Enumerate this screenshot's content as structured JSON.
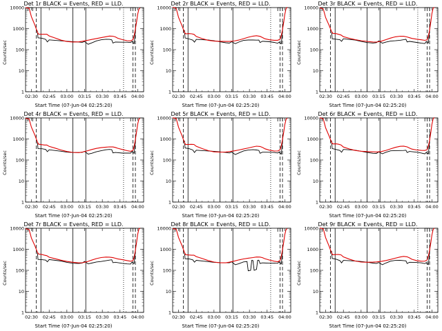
{
  "colors": {
    "events": "#000000",
    "lld": "#e00000",
    "background": "#ffffff"
  },
  "xlabel": "Start Time (07-Jun-04 02:25:20)",
  "ylabel": "Counts/sec",
  "x_ticks": [
    "02:30",
    "02:45",
    "03:00",
    "03:15",
    "03:30",
    "03:45",
    "04:00"
  ],
  "y_ticks": [
    "1",
    "10",
    "100",
    "1000",
    "10000"
  ],
  "chart_data": [
    {
      "type": "line",
      "title": "Det 1r BLACK = Events, RED = LLD.",
      "x_range_minutes": [
        0,
        100
      ],
      "ylim": [
        1,
        10000
      ],
      "yscale": "log"
    },
    {
      "type": "line",
      "title": "Det 2r BLACK = Events, RED = LLD.",
      "x_range_minutes": [
        0,
        100
      ],
      "ylim": [
        1,
        10000
      ],
      "yscale": "log"
    },
    {
      "type": "line",
      "title": "Det 3r BLACK = Events, RED = LLD.",
      "x_range_minutes": [
        0,
        100
      ],
      "ylim": [
        1,
        10000
      ],
      "yscale": "log"
    },
    {
      "type": "line",
      "title": "Det 4r BLACK = Events, RED = LLD.",
      "x_range_minutes": [
        0,
        100
      ],
      "ylim": [
        1,
        10000
      ],
      "yscale": "log"
    },
    {
      "type": "line",
      "title": "Det 5r BLACK = Events, RED = LLD.",
      "x_range_minutes": [
        0,
        100
      ],
      "ylim": [
        1,
        10000
      ],
      "yscale": "log"
    },
    {
      "type": "line",
      "title": "Det 6r BLACK = Events, RED = LLD.",
      "x_range_minutes": [
        0,
        100
      ],
      "ylim": [
        1,
        10000
      ],
      "yscale": "log"
    },
    {
      "type": "line",
      "title": "Det 7r BLACK = Events, RED = LLD.",
      "x_range_minutes": [
        0,
        100
      ],
      "ylim": [
        1,
        10000
      ],
      "yscale": "log"
    },
    {
      "type": "line",
      "title": "Det 8r BLACK = Events, RED = LLD.",
      "x_range_minutes": [
        0,
        100
      ],
      "ylim": [
        1,
        10000
      ],
      "yscale": "log"
    },
    {
      "type": "line",
      "title": "Det 9r BLACK = Events, RED = LLD.",
      "x_range_minutes": [
        0,
        100
      ],
      "ylim": [
        1,
        10000
      ],
      "yscale": "log"
    }
  ],
  "series_shape": {
    "lld_red": [
      [
        0,
        10000
      ],
      [
        3,
        9000
      ],
      [
        5,
        3500
      ],
      [
        8,
        1400
      ],
      [
        10,
        700
      ],
      [
        11,
        570
      ],
      [
        14,
        560
      ],
      [
        16,
        540
      ],
      [
        18,
        520
      ],
      [
        20,
        430
      ],
      [
        25,
        350
      ],
      [
        30,
        290
      ],
      [
        35,
        255
      ],
      [
        40,
        240
      ],
      [
        45,
        235
      ],
      [
        48,
        240
      ],
      [
        52,
        262
      ],
      [
        56,
        300
      ],
      [
        60,
        345
      ],
      [
        64,
        390
      ],
      [
        68,
        425
      ],
      [
        71,
        440
      ],
      [
        74,
        420
      ],
      [
        76,
        385
      ],
      [
        78,
        345
      ],
      [
        82,
        305
      ],
      [
        86,
        280
      ],
      [
        89,
        270
      ],
      [
        91,
        300
      ],
      [
        92,
        450
      ],
      [
        93,
        900
      ],
      [
        94,
        2000
      ],
      [
        95,
        5000
      ],
      [
        96,
        9000
      ],
      [
        97,
        10000
      ]
    ],
    "events_black": [
      [
        10,
        800
      ],
      [
        10.5,
        350
      ],
      [
        14,
        330
      ],
      [
        17,
        300
      ],
      [
        18.5,
        240
      ],
      [
        20,
        310
      ],
      [
        30,
        275
      ],
      [
        35,
        250
      ],
      [
        40,
        230
      ],
      [
        45,
        218
      ],
      [
        48,
        218
      ],
      [
        50,
        250
      ],
      [
        53,
        192
      ],
      [
        56,
        220
      ],
      [
        60,
        260
      ],
      [
        64,
        280
      ],
      [
        68,
        295
      ],
      [
        71,
        300
      ],
      [
        73,
        300
      ],
      [
        74,
        220
      ],
      [
        76,
        240
      ],
      [
        82,
        225
      ],
      [
        86,
        215
      ],
      [
        89,
        205
      ],
      [
        90,
        240
      ],
      [
        92,
        200
      ],
      [
        93,
        700
      ],
      [
        93.5,
        2000
      ]
    ],
    "events_dip_det8": [
      [
        63,
        260
      ],
      [
        64,
        95
      ],
      [
        66,
        100
      ],
      [
        67,
        300
      ],
      [
        68,
        290
      ],
      [
        69,
        100
      ],
      [
        71,
        110
      ],
      [
        72,
        300
      ]
    ],
    "vertical_lines": [
      {
        "x": 9,
        "style": "dashed"
      },
      {
        "x": 13,
        "style": "solid"
      },
      {
        "x": 40,
        "style": "solid"
      },
      {
        "x": 51,
        "style": "solid"
      },
      {
        "x": 83,
        "style": "dotted"
      },
      {
        "x": 91,
        "style": "dashed"
      },
      {
        "x": 93,
        "style": "dashed"
      }
    ]
  }
}
